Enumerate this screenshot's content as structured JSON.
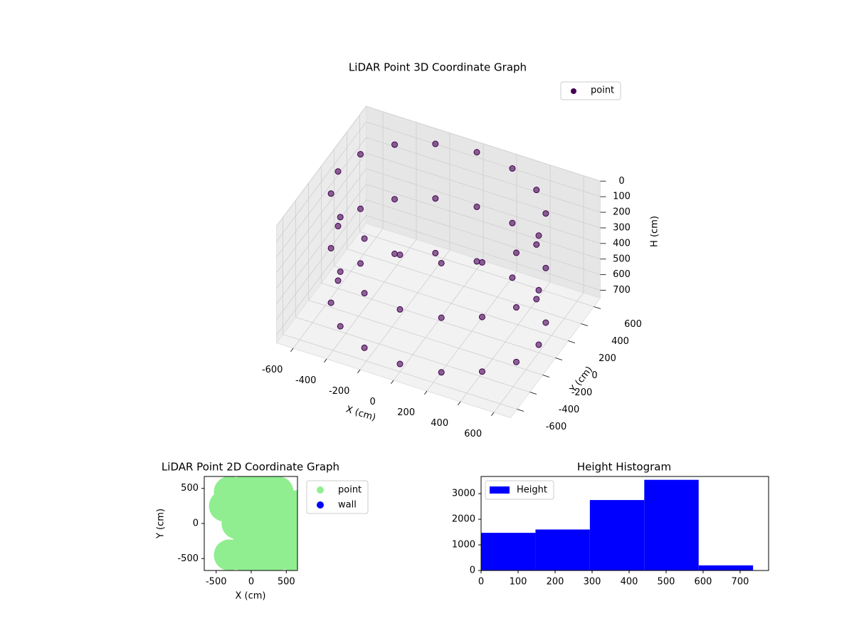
{
  "chart_data": [
    {
      "type": "scatter3d",
      "title": "LiDAR Point 3D Coordinate Graph",
      "xlabel": "X (cm)",
      "ylabel": "Y (cm)",
      "zlabel": "H (cm)",
      "xlim": [
        -700,
        700
      ],
      "ylim": [
        -700,
        700
      ],
      "zlim": [
        0,
        750
      ],
      "zinverted": true,
      "xticks": [
        -600,
        -400,
        -200,
        0,
        200,
        400,
        600
      ],
      "yticks": [
        -600,
        -400,
        -200,
        0,
        200,
        400,
        600
      ],
      "zticks": [
        0,
        100,
        200,
        300,
        400,
        500,
        600,
        700
      ],
      "legend": "upper right",
      "grid": true,
      "series": [
        {
          "name": "point",
          "color": "#440154",
          "x": [
            600,
            554,
            424,
            230,
            0,
            -230,
            -424,
            -554,
            -600,
            -554,
            -424,
            -230,
            0,
            230,
            424,
            554,
            600,
            554,
            424,
            230,
            0,
            -230,
            -424,
            -554,
            -600,
            -554,
            -424,
            -230,
            0,
            230,
            424,
            554,
            600,
            554,
            424,
            230,
            0,
            -230,
            -424,
            -554,
            -600,
            -554,
            -424,
            -230,
            0,
            230,
            424,
            554
          ],
          "y": [
            0,
            230,
            424,
            554,
            600,
            554,
            424,
            230,
            0,
            -230,
            -424,
            -554,
            -600,
            -554,
            -424,
            -230,
            0,
            230,
            424,
            554,
            600,
            554,
            424,
            230,
            0,
            -230,
            -424,
            -554,
            -600,
            -554,
            -424,
            -230,
            0,
            230,
            424,
            554,
            600,
            554,
            424,
            230,
            0,
            -230,
            -424,
            -554,
            -600,
            -554,
            -424,
            -230
          ],
          "z": [
            0,
            0,
            0,
            0,
            0,
            0,
            0,
            0,
            0,
            0,
            0,
            0,
            0,
            0,
            0,
            0,
            350,
            350,
            350,
            350,
            350,
            350,
            350,
            350,
            350,
            350,
            350,
            350,
            350,
            350,
            350,
            350,
            700,
            700,
            700,
            700,
            700,
            700,
            700,
            700,
            700,
            700,
            700,
            700,
            700,
            700,
            700,
            700
          ]
        }
      ]
    },
    {
      "type": "scatter",
      "title": "LiDAR Point 2D Coordinate Graph",
      "xlabel": "X (cm)",
      "ylabel": "Y (cm)",
      "xlim": [
        -670,
        660
      ],
      "ylim": [
        -670,
        670
      ],
      "xticks": [
        -500,
        0,
        500
      ],
      "yticks": [
        -500,
        0,
        500
      ],
      "legend": "outside right",
      "series": [
        {
          "name": "point",
          "color": "#90ee90",
          "x": [
            130,
            130,
            130,
            130,
            130,
            -200,
            460,
            -120,
            380,
            -120,
            380,
            -380,
            640,
            -310,
            570,
            -310,
            570,
            130,
            130,
            -50,
            310,
            -50,
            310,
            0,
            260
          ],
          "y": [
            0,
            600,
            -600,
            300,
            -300,
            0,
            0,
            450,
            450,
            -450,
            -450,
            250,
            250,
            -450,
            -450,
            450,
            -250,
            150,
            -150,
            150,
            150,
            -150,
            -150,
            0,
            0
          ]
        },
        {
          "name": "wall",
          "color": "#0000ff",
          "x": [],
          "y": []
        }
      ]
    },
    {
      "type": "histogram",
      "title": "Height Histogram",
      "bins": [
        0,
        147,
        294,
        441,
        588,
        735
      ],
      "counts": [
        1470,
        1600,
        2750,
        3540,
        200
      ],
      "color": "#0000ff",
      "name": "Height",
      "xlim": [
        0,
        777
      ],
      "ylim": [
        0,
        3670
      ],
      "xticks": [
        0,
        100,
        200,
        300,
        400,
        500,
        600,
        700
      ],
      "yticks": [
        0,
        1000,
        2000,
        3000
      ],
      "legend": "upper left"
    }
  ]
}
